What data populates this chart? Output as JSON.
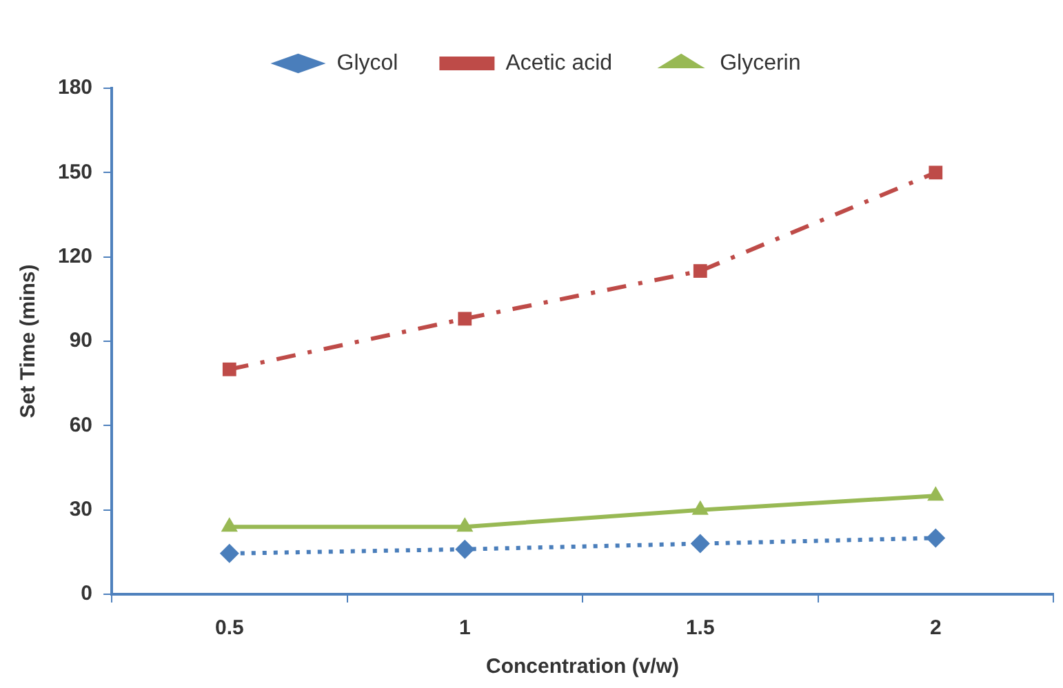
{
  "chart_data": {
    "type": "line",
    "xlabel": "Concentration (v/w)",
    "ylabel": "Set Time (mins)",
    "categories": [
      "0.5",
      "1",
      "1.5",
      "2"
    ],
    "series": [
      {
        "name": "Glycol",
        "color": "#4a7ebb",
        "values": [
          14.5,
          16,
          18,
          20
        ],
        "marker": "diamond",
        "line_style": "dotted"
      },
      {
        "name": "Acetic acid",
        "color": "#be4b48",
        "values": [
          80,
          98,
          115,
          150
        ],
        "marker": "square",
        "line_style": "dashed"
      },
      {
        "name": "Glycerin",
        "color": "#98b954",
        "values": [
          24,
          24,
          30,
          35
        ],
        "marker": "triangle",
        "line_style": "solid"
      }
    ],
    "ylim": [
      0,
      180
    ],
    "yticks": [
      0,
      30,
      60,
      90,
      120,
      150,
      180
    ],
    "grid": false,
    "legend": "top"
  }
}
